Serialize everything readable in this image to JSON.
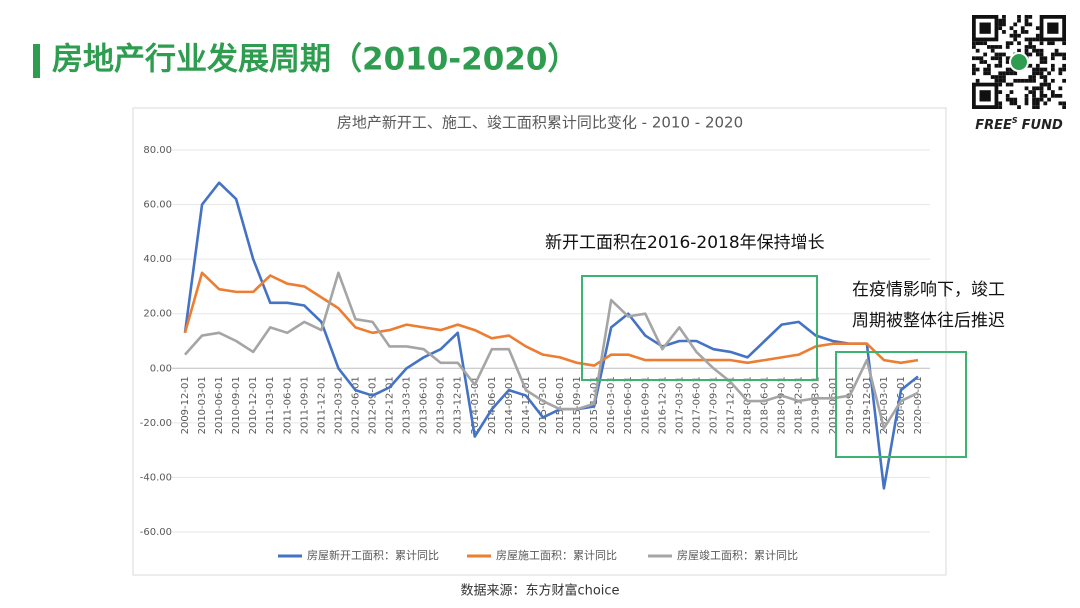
{
  "header": {
    "title": "房地产行业发展周期（2010-2020）"
  },
  "brand": {
    "main": "FREE",
    "sup": "S",
    "end": "FUND"
  },
  "chart_data": {
    "type": "line",
    "title": "房地产新开工、施工、竣工面积累计同比变化 - 2010 - 2020",
    "categories": [
      "2009-12-01",
      "2010-03-01",
      "2010-06-01",
      "2010-09-01",
      "2010-12-01",
      "2011-03-01",
      "2011-06-01",
      "2011-09-01",
      "2011-12-01",
      "2012-03-01",
      "2012-06-01",
      "2012-09-01",
      "2012-12-01",
      "2013-03-01",
      "2013-06-01",
      "2013-09-01",
      "2013-12-01",
      "2014-03-01",
      "2014-06-01",
      "2014-09-01",
      "2014-12-01",
      "2015-03-01",
      "2015-06-01",
      "2015-09-01",
      "2015-12-01",
      "2016-03-01",
      "2016-06-01",
      "2016-09-01",
      "2016-12-01",
      "2017-03-01",
      "2017-06-01",
      "2017-09-01",
      "2017-12-01",
      "2018-03-01",
      "2018-06-01",
      "2018-09-01",
      "2018-12-01",
      "2019-03-01",
      "2019-06-01",
      "2019-09-01",
      "2019-12-01",
      "2020-03-01",
      "2020-06-01",
      "2020-09-01"
    ],
    "series": [
      {
        "name": "房屋新开工面积：累计同比",
        "color": "#4472c4",
        "values": [
          13,
          60,
          68,
          62,
          40,
          24,
          24,
          23,
          17,
          0,
          -8,
          -10,
          -7,
          0,
          4,
          7,
          13,
          -25,
          -15,
          -8,
          -10,
          -18,
          -15,
          -15,
          -14,
          15,
          20,
          12,
          8,
          10,
          10,
          7,
          6,
          4,
          10,
          16,
          17,
          12,
          10,
          9,
          9,
          -44,
          -8,
          -3
        ]
      },
      {
        "name": "房屋施工面积：累计同比",
        "color": "#ed7d31",
        "values": [
          13,
          35,
          29,
          28,
          28,
          34,
          31,
          30,
          26,
          22,
          15,
          13,
          14,
          16,
          15,
          14,
          16,
          14,
          11,
          12,
          8,
          5,
          4,
          2,
          1,
          5,
          5,
          3,
          3,
          3,
          3,
          3,
          3,
          2,
          3,
          4,
          5,
          8,
          9,
          9,
          9,
          3,
          2,
          3
        ]
      },
      {
        "name": "房屋竣工面积：累计同比",
        "color": "#a5a5a5",
        "values": [
          5,
          12,
          13,
          10,
          6,
          15,
          13,
          17,
          14,
          35,
          18,
          17,
          8,
          8,
          7,
          2,
          2,
          -6,
          7,
          7,
          -8,
          -12,
          -15,
          -15,
          -13,
          25,
          19,
          20,
          7,
          15,
          6,
          0,
          -5,
          -12,
          -12,
          -10,
          -12,
          -11,
          -11,
          -10,
          3,
          -22,
          -12,
          -9
        ]
      }
    ],
    "ylim": [
      -60,
      80
    ],
    "yticks": [
      {
        "value": -60,
        "label": "-60.00"
      },
      {
        "value": -40,
        "label": "-40.00"
      },
      {
        "value": -20,
        "label": "-20.00"
      },
      {
        "value": 0,
        "label": "0.00"
      },
      {
        "value": 20,
        "label": "20.00"
      },
      {
        "value": 40,
        "label": "40.00"
      },
      {
        "value": 60,
        "label": "60.00"
      },
      {
        "value": 80,
        "label": "80.00"
      }
    ],
    "grid": true,
    "legend": "bottom",
    "annotations": [
      "新开工面积在2016-2018年保持增长",
      "在疫情影响下，竣工",
      "周期被整体往后推迟"
    ],
    "source": "数据来源：东方财富choice"
  }
}
